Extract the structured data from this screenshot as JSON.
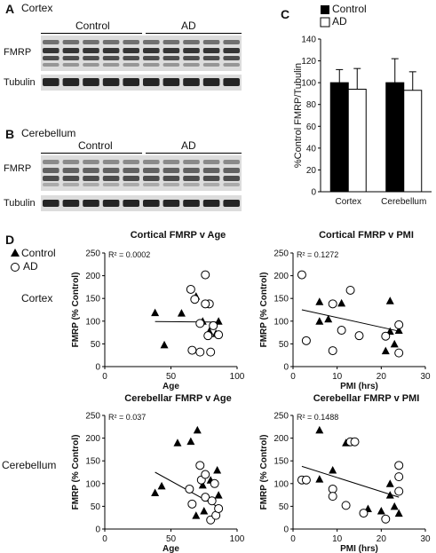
{
  "panel_a": {
    "letter": "A",
    "region": "Cortex",
    "group_control": "Control",
    "group_ad": "AD",
    "row_fmrp": "FMRP",
    "row_tubulin": "Tubulin"
  },
  "panel_b": {
    "letter": "B",
    "region": "Cerebellum",
    "group_control": "Control",
    "group_ad": "AD",
    "row_fmrp": "FMRP",
    "row_tubulin": "Tubulin"
  },
  "panel_c": {
    "letter": "C",
    "legend_control": "Control",
    "legend_ad": "AD"
  },
  "panel_d": {
    "letter": "D",
    "legend_control": "Control",
    "legend_ad": "AD",
    "row_cortex": "Cortex",
    "row_cerebellum": "Cerebellum"
  },
  "chart_data": [
    {
      "id": "c",
      "type": "bar",
      "ylabel": "%Control FMRP/Tubulin",
      "ylim": [
        0,
        140
      ],
      "yticks": [
        0,
        20,
        40,
        60,
        80,
        100,
        120,
        140
      ],
      "categories": [
        "Cortex",
        "Cerebellum"
      ],
      "series": [
        {
          "name": "Control",
          "color": "#000000",
          "values": [
            100,
            100
          ],
          "errors": [
            12,
            22
          ]
        },
        {
          "name": "AD",
          "color": "#ffffff",
          "values": [
            94,
            93
          ],
          "errors": [
            19,
            17
          ]
        }
      ]
    },
    {
      "id": "cort-age",
      "type": "scatter",
      "title": "Cortical FMRP v Age",
      "xlabel": "Age",
      "ylabel": "FMRP (% Control)",
      "xlim": [
        0,
        100
      ],
      "ylim": [
        0,
        250
      ],
      "xticks": [
        0,
        50,
        100
      ],
      "yticks": [
        0,
        50,
        100,
        150,
        200,
        250
      ],
      "r2_text": "R² = 0.0002",
      "trend": [
        [
          38,
          99
        ],
        [
          86,
          98
        ]
      ],
      "series": [
        {
          "name": "Control",
          "marker": "triangle",
          "points": [
            [
              38,
              119
            ],
            [
              45,
              48
            ],
            [
              58,
              118
            ],
            [
              69,
              155
            ],
            [
              74,
              100
            ],
            [
              79,
              78
            ],
            [
              84,
              73
            ],
            [
              86,
              100
            ]
          ]
        },
        {
          "name": "AD",
          "marker": "circle",
          "points": [
            [
              65,
              170
            ],
            [
              68,
              148
            ],
            [
              76,
              202
            ],
            [
              79,
              138
            ],
            [
              66,
              36
            ],
            [
              72,
              32
            ],
            [
              80,
              32
            ],
            [
              72,
              95
            ],
            [
              78,
              68
            ],
            [
              82,
              90
            ],
            [
              86,
              70
            ],
            [
              76,
              138
            ]
          ]
        }
      ]
    },
    {
      "id": "cort-pmi",
      "type": "scatter",
      "title": "Cortical FMRP v PMI",
      "xlabel": "PMI (hrs)",
      "ylabel": "FMRP (% Control)",
      "xlim": [
        0,
        30
      ],
      "ylim": [
        0,
        250
      ],
      "xticks": [
        0,
        10,
        20,
        30
      ],
      "yticks": [
        0,
        50,
        100,
        150,
        200,
        250
      ],
      "r2_text": "R² = 0.1272",
      "trend": [
        [
          2,
          125
        ],
        [
          24,
          78
        ]
      ],
      "series": [
        {
          "name": "Control",
          "marker": "triangle",
          "points": [
            [
              6,
              143
            ],
            [
              6,
              100
            ],
            [
              8,
              105
            ],
            [
              11,
              140
            ],
            [
              22,
              78
            ],
            [
              22,
              145
            ],
            [
              23,
              50
            ],
            [
              21,
              35
            ],
            [
              24,
              80
            ]
          ]
        },
        {
          "name": "AD",
          "marker": "circle",
          "points": [
            [
              2,
              202
            ],
            [
              3,
              57
            ],
            [
              9,
              35
            ],
            [
              9,
              138
            ],
            [
              11,
              80
            ],
            [
              13,
              168
            ],
            [
              15,
              68
            ],
            [
              21,
              67
            ],
            [
              24,
              92
            ],
            [
              24,
              30
            ]
          ]
        }
      ]
    },
    {
      "id": "cereb-age",
      "type": "scatter",
      "title": "Cerebellar FMRP v Age",
      "xlabel": "Age",
      "ylabel": "FMRP (% Control)",
      "xlim": [
        0,
        100
      ],
      "ylim": [
        0,
        250
      ],
      "xticks": [
        0,
        50,
        100
      ],
      "yticks": [
        0,
        50,
        100,
        150,
        200,
        250
      ],
      "r2_text": "R² = 0.037",
      "trend": [
        [
          38,
          125
        ],
        [
          86,
          48
        ]
      ],
      "series": [
        {
          "name": "Control",
          "marker": "triangle",
          "points": [
            [
              38,
              80
            ],
            [
              43,
              95
            ],
            [
              55,
              190
            ],
            [
              65,
              193
            ],
            [
              70,
              218
            ],
            [
              69,
              30
            ],
            [
              75,
              40
            ],
            [
              85,
              130
            ],
            [
              86,
              75
            ],
            [
              74,
              97
            ],
            [
              80,
              108
            ]
          ]
        },
        {
          "name": "AD",
          "marker": "circle",
          "points": [
            [
              64,
              88
            ],
            [
              66,
              55
            ],
            [
              72,
              140
            ],
            [
              73,
              108
            ],
            [
              76,
              120
            ],
            [
              80,
              20
            ],
            [
              84,
              30
            ],
            [
              83,
              100
            ],
            [
              76,
              70
            ],
            [
              81,
              62
            ],
            [
              86,
              45
            ]
          ]
        }
      ]
    },
    {
      "id": "cereb-pmi",
      "type": "scatter",
      "title": "Cerebellar FMRP v PMI",
      "xlabel": "PMI (hrs)",
      "ylabel": "FMRP (% Control)",
      "xlim": [
        0,
        30
      ],
      "ylim": [
        0,
        250
      ],
      "xticks": [
        0,
        10,
        20,
        30
      ],
      "yticks": [
        0,
        50,
        100,
        150,
        200,
        250
      ],
      "r2_text": "R² = 0.1488",
      "trend": [
        [
          2,
          138
        ],
        [
          24,
          70
        ]
      ],
      "series": [
        {
          "name": "Control",
          "marker": "triangle",
          "points": [
            [
              6,
              218
            ],
            [
              6,
              110
            ],
            [
              9,
              130
            ],
            [
              12,
              190
            ],
            [
              20,
              40
            ],
            [
              22,
              75
            ],
            [
              22,
              100
            ],
            [
              23,
              50
            ],
            [
              24,
              35
            ],
            [
              17,
              45
            ]
          ]
        },
        {
          "name": "AD",
          "marker": "circle",
          "points": [
            [
              2,
              108
            ],
            [
              3,
              108
            ],
            [
              9,
              88
            ],
            [
              9,
              72
            ],
            [
              13,
              192
            ],
            [
              14,
              192
            ],
            [
              12,
              52
            ],
            [
              16,
              35
            ],
            [
              21,
              22
            ],
            [
              24,
              140
            ],
            [
              24,
              115
            ],
            [
              24,
              83
            ]
          ]
        }
      ]
    }
  ]
}
